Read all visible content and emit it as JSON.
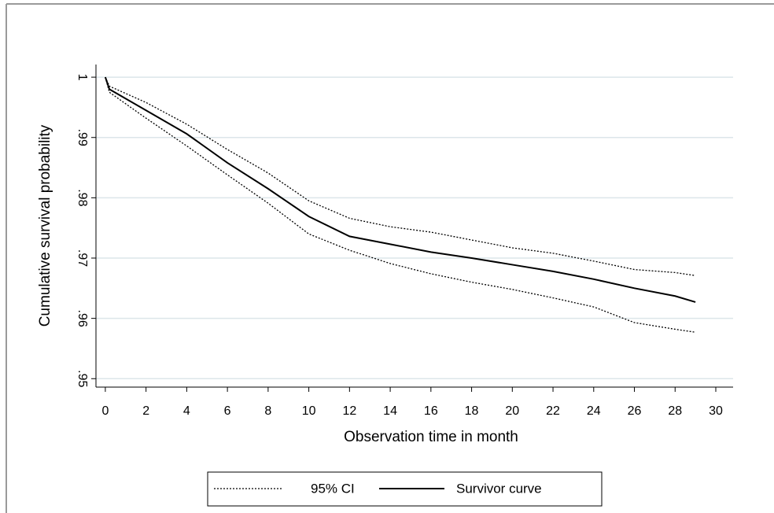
{
  "chart_data": {
    "type": "line",
    "x_label": "Observation time in month",
    "y_label": "Cumulative survival probability",
    "x": [
      0,
      0.2,
      2,
      4,
      6,
      8,
      10,
      12,
      14,
      16,
      18,
      20,
      22,
      24,
      26,
      28,
      29
    ],
    "ci": {
      "name": "95% CI",
      "color": "#000000",
      "dash": "2 2",
      "upper": [
        1.0,
        0.9985,
        0.9958,
        0.9922,
        0.988,
        0.9841,
        0.9795,
        0.9766,
        0.9752,
        0.9743,
        0.973,
        0.9717,
        0.9708,
        0.9695,
        0.9681,
        0.9676,
        0.9671
      ],
      "lower": [
        1.0,
        0.9975,
        0.9932,
        0.9886,
        0.9838,
        0.9791,
        0.974,
        0.9713,
        0.9691,
        0.9674,
        0.966,
        0.9648,
        0.9634,
        0.9619,
        0.9593,
        0.9582,
        0.9577
      ]
    },
    "series": [
      {
        "name": "Survivor curve",
        "color": "#000000",
        "values": [
          1.0,
          0.998,
          0.9945,
          0.9906,
          0.9858,
          0.9815,
          0.9769,
          0.9736,
          0.9723,
          0.971,
          0.97,
          0.9689,
          0.9678,
          0.9665,
          0.965,
          0.9637,
          0.9627
        ]
      }
    ],
    "xlim": [
      -0.46,
      30.85
    ],
    "ylim": [
      0.9486,
      1.0021
    ],
    "xticks": [
      0,
      2,
      4,
      6,
      8,
      10,
      12,
      14,
      16,
      18,
      20,
      22,
      24,
      26,
      28,
      30
    ],
    "yticks": [
      {
        "value": 0.95,
        "label": ".95"
      },
      {
        "value": 0.96,
        "label": ".96"
      },
      {
        "value": 0.97,
        "label": ".97"
      },
      {
        "value": 0.98,
        "label": ".98"
      },
      {
        "value": 0.99,
        "label": ".99"
      },
      1
    ],
    "grid": true,
    "legend": "bottom"
  }
}
